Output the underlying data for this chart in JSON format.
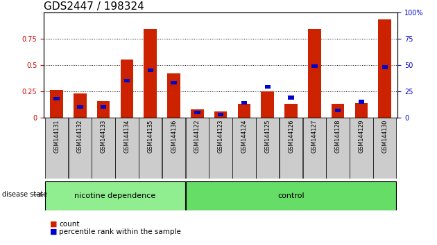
{
  "title": "GDS2447 / 198324",
  "categories": [
    "GSM144131",
    "GSM144132",
    "GSM144133",
    "GSM144134",
    "GSM144135",
    "GSM144136",
    "GSM144122",
    "GSM144123",
    "GSM144124",
    "GSM144125",
    "GSM144126",
    "GSM144127",
    "GSM144128",
    "GSM144129",
    "GSM144130"
  ],
  "red_values": [
    0.26,
    0.23,
    0.16,
    0.55,
    0.84,
    0.42,
    0.08,
    0.06,
    0.13,
    0.25,
    0.13,
    0.84,
    0.13,
    0.14,
    0.93
  ],
  "blue_values": [
    18,
    10,
    10,
    35,
    45,
    33,
    5,
    3,
    14,
    29,
    19,
    49,
    7,
    15,
    48
  ],
  "group1_label": "nicotine dependence",
  "group2_label": "control",
  "group1_count": 6,
  "group2_count": 9,
  "left_axis_color": "#cc0000",
  "right_axis_color": "#0000cc",
  "bar_color_red": "#cc2200",
  "bar_color_blue": "#0000cc",
  "ylim_left": [
    0,
    1.0
  ],
  "ylim_right": [
    0,
    100
  ],
  "yticks_left": [
    0,
    0.25,
    0.5,
    0.75
  ],
  "ytick_labels_left": [
    "0",
    "0.25",
    "0.5",
    "0.75"
  ],
  "yticks_right": [
    0,
    25,
    50,
    75,
    100
  ],
  "ytick_labels_right": [
    "0",
    "25",
    "50",
    "75",
    "100%"
  ],
  "legend_count": "count",
  "legend_percentile": "percentile rank within the sample",
  "disease_state_label": "disease state",
  "group1_color": "#90ee90",
  "group2_color": "#66dd66",
  "bar_width": 0.55,
  "title_fontsize": 11,
  "tick_fontsize": 7,
  "label_fontsize": 8
}
